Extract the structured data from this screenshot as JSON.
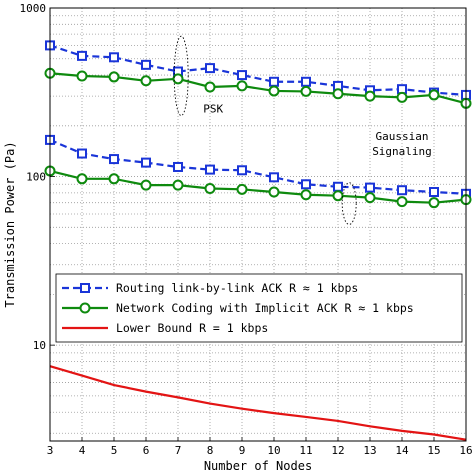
{
  "chart_data": {
    "type": "line",
    "title": "",
    "xlabel": "Number of Nodes",
    "ylabel": "Transmission Power (Pa)",
    "yscale": "log",
    "xlim": [
      3,
      16
    ],
    "ylim": [
      2.7,
      1000
    ],
    "x": [
      3,
      4,
      5,
      6,
      7,
      8,
      9,
      10,
      11,
      12,
      13,
      14,
      15,
      16
    ],
    "x_tick_labels": [
      "3",
      "4",
      "5",
      "6",
      "7",
      "8",
      "9",
      "10",
      "11",
      "12",
      "13",
      "14",
      "15",
      "16"
    ],
    "y_tick_labels": [
      {
        "value": 10,
        "label": "10"
      },
      {
        "value": 100,
        "label": "100"
      },
      {
        "value": 1000,
        "label": "1000"
      }
    ],
    "grid": true,
    "legend_position": "lower-left",
    "series": [
      {
        "name": "Routing link-by-link ACK R ≈ 1 kbps",
        "group": "PSK",
        "color": "#1a35d8",
        "style": "dashed",
        "marker": "square",
        "values": [
          600,
          520,
          510,
          460,
          420,
          440,
          400,
          365,
          365,
          345,
          325,
          330,
          315,
          305
        ]
      },
      {
        "name": "Network Coding with Implicit ACK R ≈ 1 kbps",
        "group": "PSK",
        "color": "#0e8a0e",
        "style": "solid",
        "marker": "circle",
        "values": [
          410,
          395,
          390,
          370,
          380,
          340,
          345,
          322,
          320,
          310,
          300,
          295,
          305,
          272
        ]
      },
      {
        "name": "",
        "group": "Gaussian",
        "color": "#1a35d8",
        "style": "dashed",
        "marker": "square",
        "values": [
          165,
          137,
          127,
          121,
          114,
          110,
          109,
          99,
          90,
          87,
          86,
          83,
          81,
          79
        ]
      },
      {
        "name": "",
        "group": "Gaussian",
        "color": "#0e8a0e",
        "style": "solid",
        "marker": "circle",
        "values": [
          108,
          97,
          97,
          89,
          89,
          85,
          84,
          81,
          78,
          77,
          75,
          71,
          70,
          73
        ]
      },
      {
        "name": "Lower Bound R = 1 kbps",
        "group": "bound",
        "color": "#e31414",
        "style": "solid",
        "marker": "none",
        "values": [
          7.5,
          6.6,
          5.8,
          5.3,
          4.9,
          4.5,
          4.2,
          3.95,
          3.75,
          3.55,
          3.3,
          3.1,
          2.95,
          2.75
        ]
      }
    ],
    "legend": [
      {
        "series_index": 0
      },
      {
        "series_index": 1
      },
      {
        "series_index": 4
      }
    ],
    "annotations": [
      {
        "text": "PSK",
        "x": 8.1,
        "y": 240
      },
      {
        "text": "Gaussian",
        "x": 14.0,
        "y": 165
      },
      {
        "text": "Signaling",
        "x": 14.0,
        "y": 134
      }
    ],
    "ellipses": [
      {
        "x": 7.1,
        "y_low": 230,
        "y_high": 680
      },
      {
        "x": 12.35,
        "y_low": 52,
        "y_high": 92
      }
    ]
  }
}
